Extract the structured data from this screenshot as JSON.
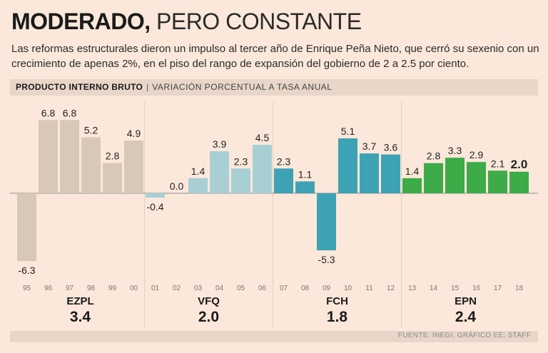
{
  "title": {
    "bold": "MODERADO,",
    "light": "PERO CONSTANTE"
  },
  "subtitle": "Las reformas estructurales dieron un impulso al tercer año de Enrique Peña Nieto, que cerró su sexenio con un crecimiento de apenas 2%, en el piso del rango de expansión del gobierno de 2 a 2.5 por ciento.",
  "banner": {
    "label": "PRODUCTO INTERNO BRUTO",
    "separator": "|",
    "sublabel": "VARIACIÓN PORCENTUAL A TASA ANUAL"
  },
  "footer": "FUENTE: INEGI. GRÁFICO EE: STAFF",
  "chart_data": {
    "type": "bar",
    "title": "PRODUCTO INTERNO BRUTO",
    "ylabel": "Variación porcentual a tasa anual",
    "ylim": [
      -6.5,
      7
    ],
    "categories": [
      "95",
      "96",
      "97",
      "98",
      "99",
      "00",
      "01",
      "02",
      "03",
      "04",
      "05",
      "06",
      "07",
      "08",
      "09",
      "10",
      "11",
      "12",
      "13",
      "14",
      "15",
      "16",
      "17",
      "18"
    ],
    "value_labels": [
      "-6.3",
      "6.8",
      "6.8",
      "5.2",
      "2.8",
      "4.9",
      "-0.4",
      "0.0",
      "1.4",
      "3.9",
      "2.3",
      "4.5",
      "2.3",
      "1.1",
      "-5.3",
      "5.1",
      "3.7",
      "3.6",
      "1.4",
      "2.8",
      "3.3",
      "2.9",
      "2.1",
      "2.0"
    ],
    "values": [
      -6.3,
      6.8,
      6.8,
      5.2,
      2.8,
      4.9,
      -0.4,
      0.0,
      1.4,
      3.9,
      2.3,
      4.5,
      2.3,
      1.1,
      -5.3,
      5.1,
      3.7,
      3.6,
      1.4,
      2.8,
      3.3,
      2.9,
      2.1,
      2.0
    ],
    "highlight_last": true,
    "groups": [
      {
        "name": "EZPL",
        "average": "3.4",
        "start": 0,
        "count": 6,
        "color": "#d8c8b8"
      },
      {
        "name": "VFQ",
        "average": "2.0",
        "start": 6,
        "count": 6,
        "color": "#a7cfd4"
      },
      {
        "name": "FCH",
        "average": "1.8",
        "start": 12,
        "count": 6,
        "color": "#3ea2b5"
      },
      {
        "name": "EPN",
        "average": "2.4",
        "start": 18,
        "count": 6,
        "color": "#3cab48"
      }
    ]
  }
}
